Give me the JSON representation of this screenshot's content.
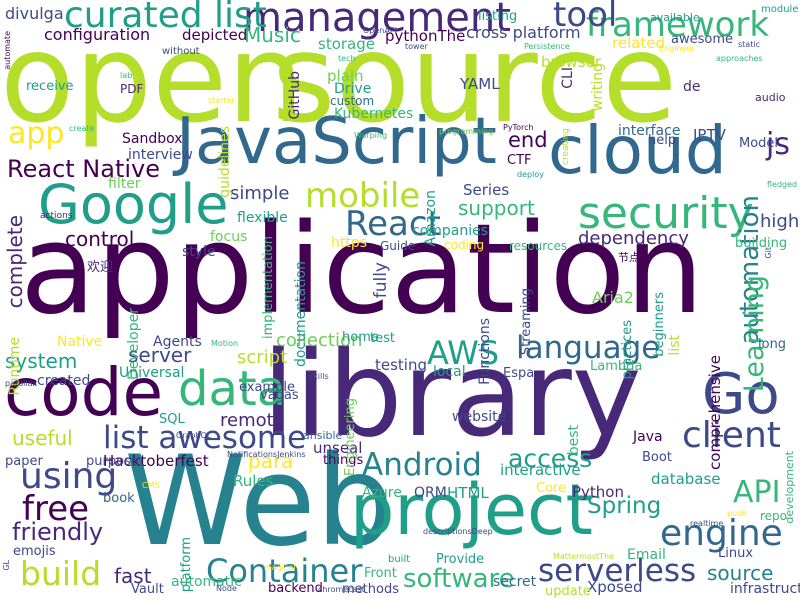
{
  "colors": {
    "background": "#ffffff",
    "deep_purple": "#440154",
    "purple": "#482878",
    "indigo": "#3e4989",
    "blue": "#31688e",
    "teal": "#26828e",
    "green_teal": "#1f9e89",
    "green": "#35b779",
    "light_green": "#6ece58",
    "lime": "#b5de2b",
    "yellow": "#fde725"
  },
  "words": [
    {
      "text": "open",
      "color": "lime",
      "orientation": "horizontal"
    },
    {
      "text": "source",
      "color": "lime",
      "orientation": "horizontal"
    },
    {
      "text": "application",
      "color": "deep_purple",
      "orientation": "horizontal"
    },
    {
      "text": "library",
      "color": "purple",
      "orientation": "horizontal"
    },
    {
      "text": "Web",
      "color": "teal",
      "orientation": "horizontal"
    },
    {
      "text": "project",
      "color": "green_teal",
      "orientation": "horizontal"
    },
    {
      "text": "JavaScript",
      "color": "blue",
      "orientation": "horizontal"
    },
    {
      "text": "cloud",
      "color": "blue",
      "orientation": "horizontal"
    },
    {
      "text": "code",
      "color": "deep_purple",
      "orientation": "horizontal"
    },
    {
      "text": "Go",
      "color": "indigo",
      "orientation": "horizontal"
    },
    {
      "text": "Google",
      "color": "green_teal",
      "orientation": "horizontal"
    },
    {
      "text": "management",
      "color": "purple",
      "orientation": "horizontal"
    },
    {
      "text": "security",
      "color": "green",
      "orientation": "horizontal"
    },
    {
      "text": "data",
      "color": "green",
      "orientation": "horizontal"
    },
    {
      "text": "framework",
      "color": "green",
      "orientation": "horizontal"
    },
    {
      "text": "curated list",
      "color": "green_teal",
      "orientation": "horizontal"
    },
    {
      "text": "mobile",
      "color": "lime",
      "orientation": "horizontal"
    },
    {
      "text": "tool",
      "color": "indigo",
      "orientation": "horizontal"
    },
    {
      "text": "React",
      "color": "blue",
      "orientation": "horizontal"
    },
    {
      "text": "Android",
      "color": "teal",
      "orientation": "horizontal"
    },
    {
      "text": "list awesome",
      "color": "indigo",
      "orientation": "horizontal"
    },
    {
      "text": "client",
      "color": "indigo",
      "orientation": "horizontal"
    },
    {
      "text": "engine",
      "color": "blue",
      "orientation": "horizontal"
    },
    {
      "text": "language",
      "color": "blue",
      "orientation": "horizontal"
    },
    {
      "text": "AWS",
      "color": "green_teal",
      "orientation": "horizontal"
    },
    {
      "text": "using",
      "color": "indigo",
      "orientation": "horizontal"
    },
    {
      "text": "free",
      "color": "deep_purple",
      "orientation": "horizontal"
    },
    {
      "text": "build",
      "color": "lime",
      "orientation": "horizontal"
    },
    {
      "text": "Container",
      "color": "teal",
      "orientation": "horizontal"
    },
    {
      "text": "serverless",
      "color": "indigo",
      "orientation": "horizontal"
    },
    {
      "text": "software",
      "color": "green",
      "orientation": "horizontal"
    },
    {
      "text": "API",
      "color": "green",
      "orientation": "horizontal"
    },
    {
      "text": "automation",
      "color": "teal",
      "orientation": "vertical"
    },
    {
      "text": "Learning",
      "color": "green",
      "orientation": "vertical"
    },
    {
      "text": "app",
      "color": "yellow",
      "orientation": "horizontal"
    },
    {
      "text": "React Native",
      "color": "deep_purple",
      "orientation": "horizontal"
    },
    {
      "text": "access",
      "color": "green_teal",
      "orientation": "horizontal"
    },
    {
      "text": "js",
      "color": "purple",
      "orientation": "horizontal"
    },
    {
      "text": "friendly",
      "color": "purple",
      "orientation": "horizontal"
    },
    {
      "text": "Spring",
      "color": "green_teal",
      "orientation": "horizontal"
    },
    {
      "text": "source",
      "color": "teal",
      "orientation": "horizontal"
    },
    {
      "text": "Music",
      "color": "green",
      "orientation": "horizontal"
    },
    {
      "text": "para",
      "color": "yellow",
      "orientation": "horizontal"
    },
    {
      "text": "support",
      "color": "green",
      "orientation": "horizontal"
    },
    {
      "text": "control",
      "color": "deep_purple",
      "orientation": "horizontal"
    },
    {
      "text": "end",
      "color": "deep_purple",
      "orientation": "horizontal"
    },
    {
      "text": "dependency",
      "color": "purple",
      "orientation": "horizontal"
    },
    {
      "text": "fast",
      "color": "purple",
      "orientation": "horizontal"
    },
    {
      "text": "useful",
      "color": "lime",
      "orientation": "horizontal"
    },
    {
      "text": "system",
      "color": "green_teal",
      "orientation": "horizontal"
    },
    {
      "text": "complete",
      "color": "purple",
      "orientation": "vertical"
    },
    {
      "text": "server",
      "color": "indigo",
      "orientation": "horizontal"
    },
    {
      "text": "script",
      "color": "lime",
      "orientation": "horizontal"
    },
    {
      "text": "collection",
      "color": "light_green",
      "orientation": "horizontal"
    },
    {
      "text": "simple",
      "color": "indigo",
      "orientation": "horizontal"
    },
    {
      "text": "configuration",
      "color": "deep_purple",
      "orientation": "horizontal"
    },
    {
      "text": "cross platform",
      "color": "indigo",
      "orientation": "horizontal"
    },
    {
      "text": "storage",
      "color": "green",
      "orientation": "horizontal"
    },
    {
      "text": "remote",
      "color": "purple",
      "orientation": "horizontal"
    },
    {
      "text": "high",
      "color": "indigo",
      "orientation": "horizontal"
    },
    {
      "text": "interactive",
      "color": "green_teal",
      "orientation": "horizontal"
    },
    {
      "text": "database",
      "color": "green_teal",
      "orientation": "horizontal"
    },
    {
      "text": "Python",
      "color": "purple",
      "orientation": "horizontal"
    },
    {
      "text": "HTML",
      "color": "green_teal",
      "orientation": "horizontal"
    },
    {
      "text": "Rules",
      "color": "green",
      "orientation": "horizontal"
    },
    {
      "text": "Hacktoberfest",
      "color": "deep_purple",
      "orientation": "horizontal"
    },
    {
      "text": "divulga",
      "color": "indigo",
      "orientation": "horizontal"
    },
    {
      "text": "depicted",
      "color": "deep_purple",
      "orientation": "horizontal"
    },
    {
      "text": "pythonThe",
      "color": "deep_purple",
      "orientation": "horizontal"
    },
    {
      "text": "listing",
      "color": "green_teal",
      "orientation": "horizontal"
    },
    {
      "text": "related",
      "color": "yellow",
      "orientation": "horizontal"
    },
    {
      "text": "awesome",
      "color": "indigo",
      "orientation": "horizontal"
    },
    {
      "text": "available",
      "color": "green_teal",
      "orientation": "horizontal"
    },
    {
      "text": "module",
      "color": "green_teal",
      "orientation": "horizontal"
    },
    {
      "text": "receive",
      "color": "green_teal",
      "orientation": "horizontal"
    },
    {
      "text": "PDF",
      "color": "purple",
      "orientation": "horizontal"
    },
    {
      "text": "plain",
      "color": "light_green",
      "orientation": "horizontal"
    },
    {
      "text": "Drive",
      "color": "green_teal",
      "orientation": "horizontal"
    },
    {
      "text": "custom",
      "color": "blue",
      "orientation": "horizontal"
    },
    {
      "text": "Kubernetes",
      "color": "green",
      "orientation": "horizontal"
    },
    {
      "text": "YAML",
      "color": "indigo",
      "orientation": "horizontal"
    },
    {
      "text": "de",
      "color": "purple",
      "orientation": "horizontal"
    },
    {
      "text": "audio",
      "color": "purple",
      "orientation": "horizontal"
    },
    {
      "text": "browser",
      "color": "lime",
      "orientation": "horizontal"
    },
    {
      "text": "CLI",
      "color": "purple",
      "orientation": "vertical"
    },
    {
      "text": "writing",
      "color": "lime",
      "orientation": "vertical"
    },
    {
      "text": "GitHub",
      "color": "purple",
      "orientation": "vertical"
    },
    {
      "text": "guidelines",
      "color": "lime",
      "orientation": "vertical"
    },
    {
      "text": "Sandbox",
      "color": "deep_purple",
      "orientation": "horizontal"
    },
    {
      "text": "interview",
      "color": "indigo",
      "orientation": "horizontal"
    },
    {
      "text": "filter",
      "color": "light_green",
      "orientation": "horizontal"
    },
    {
      "text": "interface",
      "color": "blue",
      "orientation": "horizontal"
    },
    {
      "text": "help",
      "color": "indigo",
      "orientation": "horizontal"
    },
    {
      "text": "IPTV",
      "color": "indigo",
      "orientation": "horizontal"
    },
    {
      "text": "Model",
      "color": "indigo",
      "orientation": "horizontal"
    },
    {
      "text": "CTF",
      "color": "deep_purple",
      "orientation": "horizontal"
    },
    {
      "text": "Series",
      "color": "indigo",
      "orientation": "horizontal"
    },
    {
      "text": "flexible",
      "color": "green_teal",
      "orientation": "horizontal"
    },
    {
      "text": "focus",
      "color": "light_green",
      "orientation": "horizontal"
    },
    {
      "text": "https",
      "color": "yellow",
      "orientation": "horizontal"
    },
    {
      "text": "Guide",
      "color": "indigo",
      "orientation": "horizontal"
    },
    {
      "text": "coding",
      "color": "yellow",
      "orientation": "horizontal"
    },
    {
      "text": "resources",
      "color": "green",
      "orientation": "horizontal"
    },
    {
      "text": "companies",
      "color": "green_teal",
      "orientation": "horizontal"
    },
    {
      "text": "building",
      "color": "green",
      "orientation": "horizontal"
    },
    {
      "text": "Aria2",
      "color": "light_green",
      "orientation": "horizontal"
    },
    {
      "text": "节点",
      "color": "deep_purple",
      "orientation": "horizontal"
    },
    {
      "text": "欢迎",
      "color": "purple",
      "orientation": "horizontal"
    },
    {
      "text": "Developer",
      "color": "green",
      "orientation": "vertical"
    },
    {
      "text": "style",
      "color": "indigo",
      "orientation": "horizontal"
    },
    {
      "text": "documentation",
      "color": "green_teal",
      "orientation": "vertical"
    },
    {
      "text": "implementation",
      "color": "green",
      "orientation": "vertical"
    },
    {
      "text": "Amazon",
      "color": "green_teal",
      "orientation": "vertical"
    },
    {
      "text": "Functions",
      "color": "indigo",
      "orientation": "vertical"
    },
    {
      "text": "Streaming",
      "color": "indigo",
      "orientation": "vertical"
    },
    {
      "text": "fully",
      "color": "indigo",
      "orientation": "vertical"
    },
    {
      "text": "list",
      "color": "lime",
      "orientation": "vertical"
    },
    {
      "text": "beginners",
      "color": "green_teal",
      "orientation": "vertical"
    },
    {
      "text": "practices",
      "color": "green_teal",
      "orientation": "vertical"
    },
    {
      "text": "comprehensive",
      "color": "deep_purple",
      "orientation": "vertical"
    },
    {
      "text": "long",
      "color": "blue",
      "orientation": "horizontal"
    },
    {
      "text": "Runtime",
      "color": "lime",
      "orientation": "vertical"
    },
    {
      "text": "Native",
      "color": "yellow",
      "orientation": "horizontal"
    },
    {
      "text": "Agents",
      "color": "indigo",
      "orientation": "horizontal"
    },
    {
      "text": "home",
      "color": "green_teal",
      "orientation": "horizontal"
    },
    {
      "text": "test",
      "color": "green_teal",
      "orientation": "horizontal"
    },
    {
      "text": "testing",
      "color": "indigo",
      "orientation": "horizontal"
    },
    {
      "text": "local",
      "color": "green_teal",
      "orientation": "horizontal"
    },
    {
      "text": "Lambda",
      "color": "green",
      "orientation": "horizontal"
    },
    {
      "text": "Espa",
      "color": "indigo",
      "orientation": "horizontal"
    },
    {
      "text": "created",
      "color": "indigo",
      "orientation": "horizontal"
    },
    {
      "text": "Universal",
      "color": "green_teal",
      "orientation": "horizontal"
    },
    {
      "text": "example",
      "color": "indigo",
      "orientation": "horizontal"
    },
    {
      "text": "vagas",
      "color": "indigo",
      "orientation": "horizontal"
    },
    {
      "text": "SQL",
      "color": "green_teal",
      "orientation": "horizontal"
    },
    {
      "text": "website",
      "color": "indigo",
      "orientation": "horizontal"
    },
    {
      "text": "best",
      "color": "green",
      "orientation": "vertical"
    },
    {
      "text": "Java",
      "color": "deep_purple",
      "orientation": "horizontal"
    },
    {
      "text": "Boot",
      "color": "indigo",
      "orientation": "horizontal"
    },
    {
      "text": "paper",
      "color": "indigo",
      "orientation": "horizontal"
    },
    {
      "text": "purpose",
      "color": "indigo",
      "orientation": "horizontal"
    },
    {
      "text": "unseal",
      "color": "purple",
      "orientation": "horizontal"
    },
    {
      "text": "things",
      "color": "deep_purple",
      "orientation": "horizontal"
    },
    {
      "text": "Azure",
      "color": "green",
      "orientation": "horizontal"
    },
    {
      "text": "ORM",
      "color": "indigo",
      "orientation": "horizontal"
    },
    {
      "text": "Core",
      "color": "yellow",
      "orientation": "horizontal"
    },
    {
      "text": "repo",
      "color": "green",
      "orientation": "horizontal"
    },
    {
      "text": "book",
      "color": "blue",
      "orientation": "horizontal"
    },
    {
      "text": "platform",
      "color": "green_teal",
      "orientation": "vertical"
    },
    {
      "text": "emojis",
      "color": "indigo",
      "orientation": "horizontal"
    },
    {
      "text": "automatic",
      "color": "green",
      "orientation": "horizontal"
    },
    {
      "text": "Vault",
      "color": "indigo",
      "orientation": "horizontal"
    },
    {
      "text": "Provide",
      "color": "green_teal",
      "orientation": "horizontal"
    },
    {
      "text": "Email",
      "color": "green",
      "orientation": "horizontal"
    },
    {
      "text": "Linux",
      "color": "indigo",
      "orientation": "horizontal"
    },
    {
      "text": "secret",
      "color": "blue",
      "orientation": "horizontal"
    },
    {
      "text": "Xposed",
      "color": "indigo",
      "orientation": "horizontal"
    },
    {
      "text": "infrastructure",
      "color": "indigo",
      "orientation": "horizontal"
    },
    {
      "text": "methods",
      "color": "indigo",
      "orientation": "horizontal"
    },
    {
      "text": "backend",
      "color": "deep_purple",
      "orientation": "horizontal"
    },
    {
      "text": "Front",
      "color": "green",
      "orientation": "horizontal"
    },
    {
      "text": "built",
      "color": "green_teal",
      "orientation": "horizontal"
    },
    {
      "text": "update",
      "color": "lime",
      "orientation": "horizontal"
    },
    {
      "text": "ansible",
      "color": "blue",
      "orientation": "horizontal"
    },
    {
      "text": "Engineering",
      "color": "light_green",
      "orientation": "vertical"
    },
    {
      "text": "development",
      "color": "green",
      "orientation": "vertical"
    },
    {
      "text": "automate",
      "color": "deep_purple",
      "orientation": "vertical"
    },
    {
      "text": "without",
      "color": "indigo",
      "orientation": "horizontal"
    },
    {
      "text": "tech",
      "color": "green",
      "orientation": "horizontal"
    },
    {
      "text": "OpenAPI",
      "color": "indigo",
      "orientation": "horizontal"
    },
    {
      "text": "tower",
      "color": "indigo",
      "orientation": "horizontal"
    },
    {
      "text": "Persistence",
      "color": "green",
      "orientation": "horizontal"
    },
    {
      "text": "Engineer",
      "color": "yellow",
      "orientation": "horizontal"
    },
    {
      "text": "static",
      "color": "indigo",
      "orientation": "horizontal"
    },
    {
      "text": "approaches",
      "color": "green",
      "orientation": "horizontal"
    },
    {
      "text": "lab",
      "color": "green",
      "orientation": "horizontal"
    },
    {
      "text": "starter",
      "color": "yellow",
      "orientation": "horizontal"
    },
    {
      "text": "create",
      "color": "green",
      "orientation": "horizontal"
    },
    {
      "text": "Warping",
      "color": "green",
      "orientation": "horizontal"
    },
    {
      "text": "programming",
      "color": "light_green",
      "orientation": "horizontal"
    },
    {
      "text": "PyTorch",
      "color": "deep_purple",
      "orientation": "horizontal"
    },
    {
      "text": "deploy",
      "color": "green_teal",
      "orientation": "horizontal"
    },
    {
      "text": "fledged",
      "color": "green",
      "orientation": "horizontal"
    },
    {
      "text": "actions",
      "color": "purple",
      "orientation": "horizontal"
    },
    {
      "text": "creating",
      "color": "lime",
      "orientation": "vertical"
    },
    {
      "text": "Git",
      "color": "indigo",
      "orientation": "vertical"
    },
    {
      "text": "Motion",
      "color": "green",
      "orientation": "horizontal"
    },
    {
      "text": "parallax",
      "color": "indigo",
      "orientation": "horizontal"
    },
    {
      "text": "skills",
      "color": "indigo",
      "orientation": "horizontal"
    },
    {
      "text": "GraphQL",
      "color": "indigo",
      "orientation": "horizontal"
    },
    {
      "text": "NotificationsJenkins",
      "color": "indigo",
      "orientation": "horizontal"
    },
    {
      "text": "CMS",
      "color": "yellow",
      "orientation": "horizontal"
    },
    {
      "text": "push",
      "color": "yellow",
      "orientation": "horizontal"
    },
    {
      "text": "realtime",
      "color": "indigo",
      "orientation": "horizontal"
    },
    {
      "text": "GL",
      "color": "indigo",
      "orientation": "vertical"
    },
    {
      "text": "Node",
      "color": "indigo",
      "orientation": "horizontal"
    },
    {
      "text": "chromecast",
      "color": "indigo",
      "orientation": "horizontal"
    },
    {
      "text": "magical",
      "color": "yellow",
      "orientation": "horizontal"
    },
    {
      "text": "MattermostThe",
      "color": "lime",
      "orientation": "horizontal"
    },
    {
      "text": "descriptionsDeep",
      "color": "indigo",
      "orientation": "horizontal"
    },
    {
      "text": "Us",
      "color": "light_green",
      "orientation": "horizontal"
    }
  ]
}
